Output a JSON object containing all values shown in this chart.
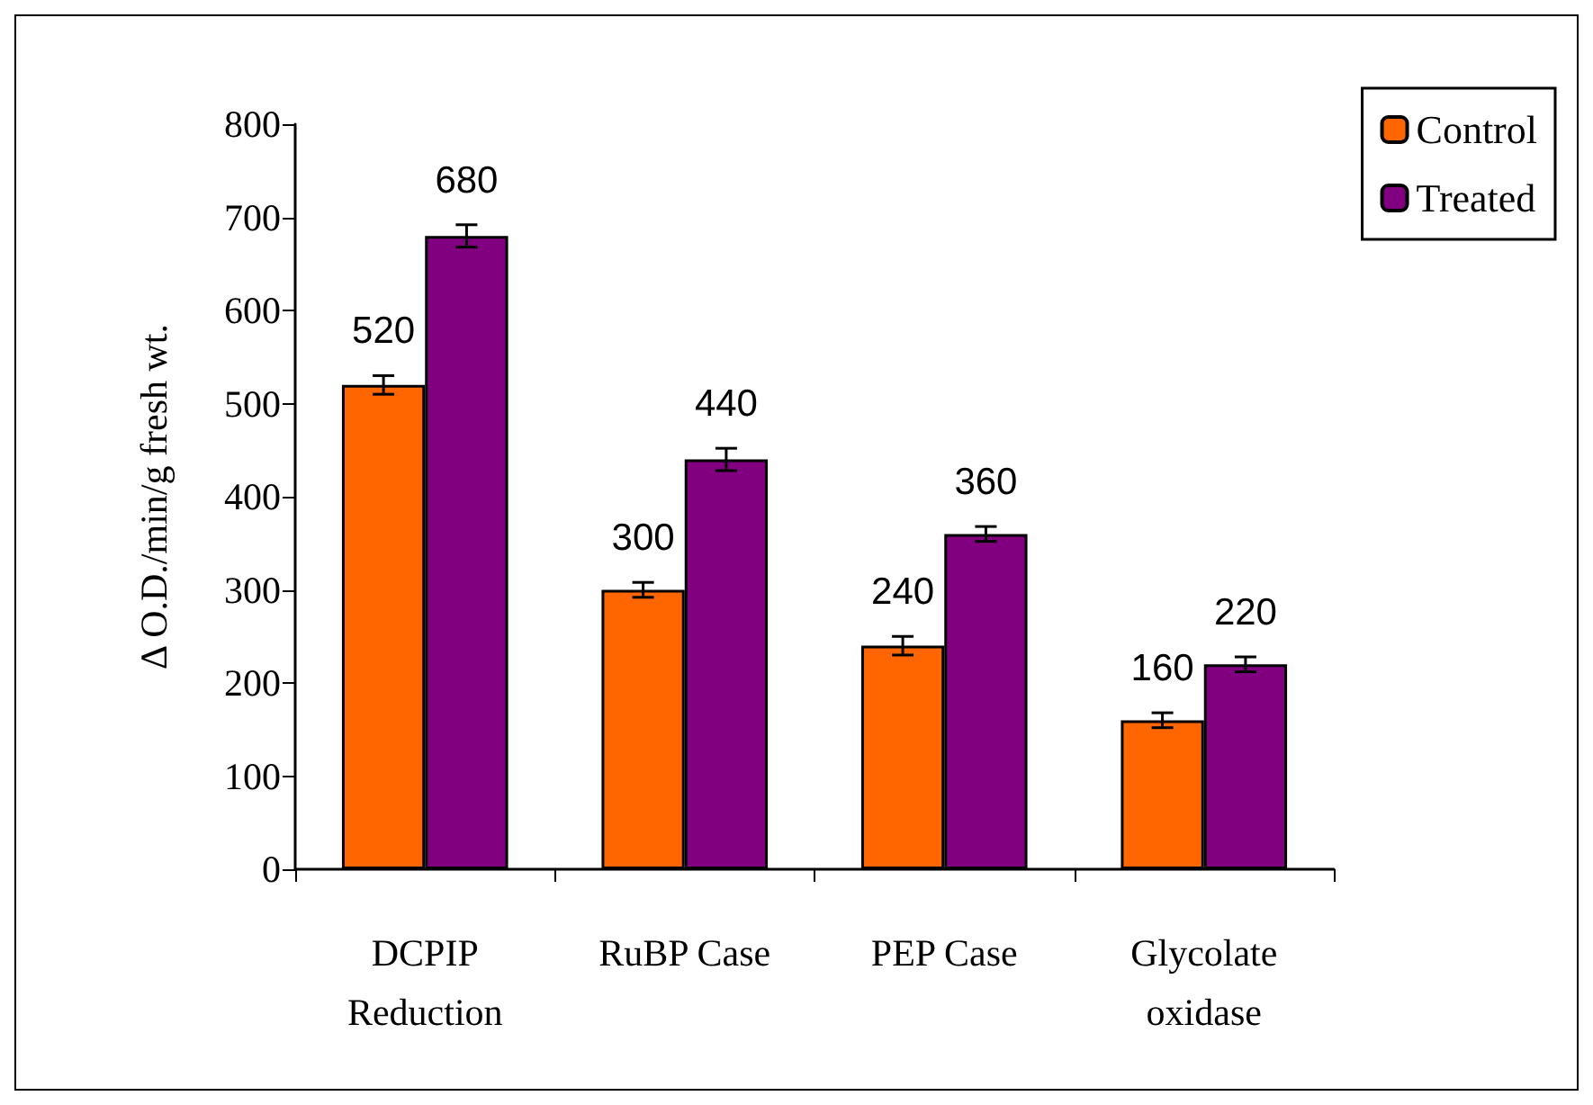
{
  "chart_data": {
    "type": "bar",
    "ylabel": "Δ O.D./min/g fresh wt.",
    "categories": [
      "DCPIP\nReduction",
      "RuBP Case",
      "PEP Case",
      "Glycolate\noxidase"
    ],
    "series": [
      {
        "name": "Control",
        "color": "#ff6600",
        "values": [
          520,
          300,
          240,
          160
        ],
        "errors": [
          10,
          8,
          10,
          8
        ]
      },
      {
        "name": "Treated",
        "color": "#800080",
        "values": [
          680,
          440,
          360,
          220
        ],
        "errors": [
          12,
          12,
          8,
          8
        ]
      }
    ],
    "ylim": [
      0,
      800
    ],
    "yticks": [
      0,
      100,
      200,
      300,
      400,
      500,
      600,
      700,
      800
    ],
    "data_labels": true,
    "legend": "top right",
    "grid": false
  }
}
